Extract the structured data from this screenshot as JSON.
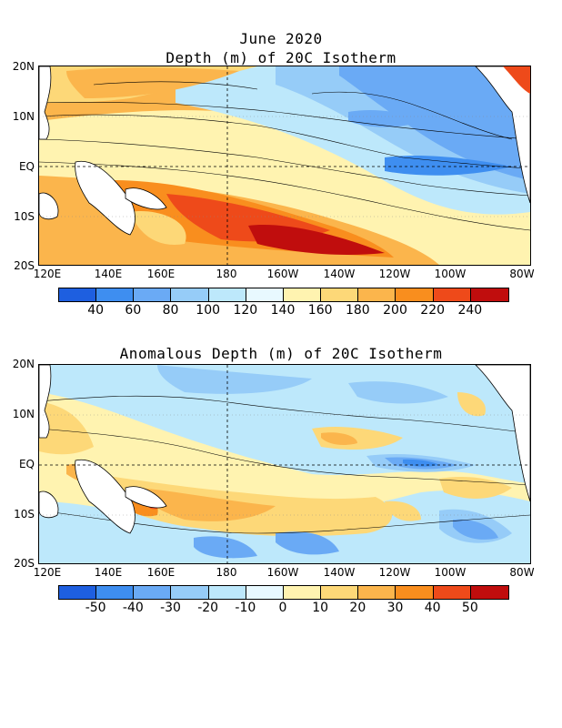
{
  "panel1": {
    "title_line1": "June 2020",
    "title_line2": "Depth (m) of 20C Isotherm",
    "y_ticks": [
      "20N",
      "10N",
      "EQ",
      "10S",
      "20S"
    ],
    "x_ticks": [
      "120E",
      "140E",
      "160E",
      "180",
      "160W",
      "140W",
      "120W",
      "100W",
      "80W"
    ],
    "colorbar": {
      "colors": [
        "#1e5fe0",
        "#3e8ef0",
        "#6aaaf5",
        "#96ccf8",
        "#bde8fb",
        "#e8f9ff",
        "#fff3b0",
        "#fdd878",
        "#fbb54c",
        "#f98e1e",
        "#ee4a1a",
        "#c00d0d"
      ],
      "labels": [
        "40",
        "60",
        "80",
        "100",
        "120",
        "140",
        "160",
        "180",
        "200",
        "220",
        "240"
      ]
    }
  },
  "panel2": {
    "title": "Anomalous Depth (m) of 20C Isotherm",
    "y_ticks": [
      "20N",
      "10N",
      "EQ",
      "10S",
      "20S"
    ],
    "x_ticks": [
      "120E",
      "140E",
      "160E",
      "180",
      "160W",
      "140W",
      "120W",
      "100W",
      "80W"
    ],
    "colorbar": {
      "colors": [
        "#1e5fe0",
        "#3e8ef0",
        "#6aaaf5",
        "#96ccf8",
        "#bde8fb",
        "#e8f9ff",
        "#fff3b0",
        "#fdd878",
        "#fbb54c",
        "#f98e1e",
        "#ee4a1a",
        "#c00d0d"
      ],
      "labels": [
        "-50",
        "-40",
        "-30",
        "-20",
        "-10",
        "0",
        "10",
        "20",
        "30",
        "40",
        "50"
      ]
    }
  }
}
